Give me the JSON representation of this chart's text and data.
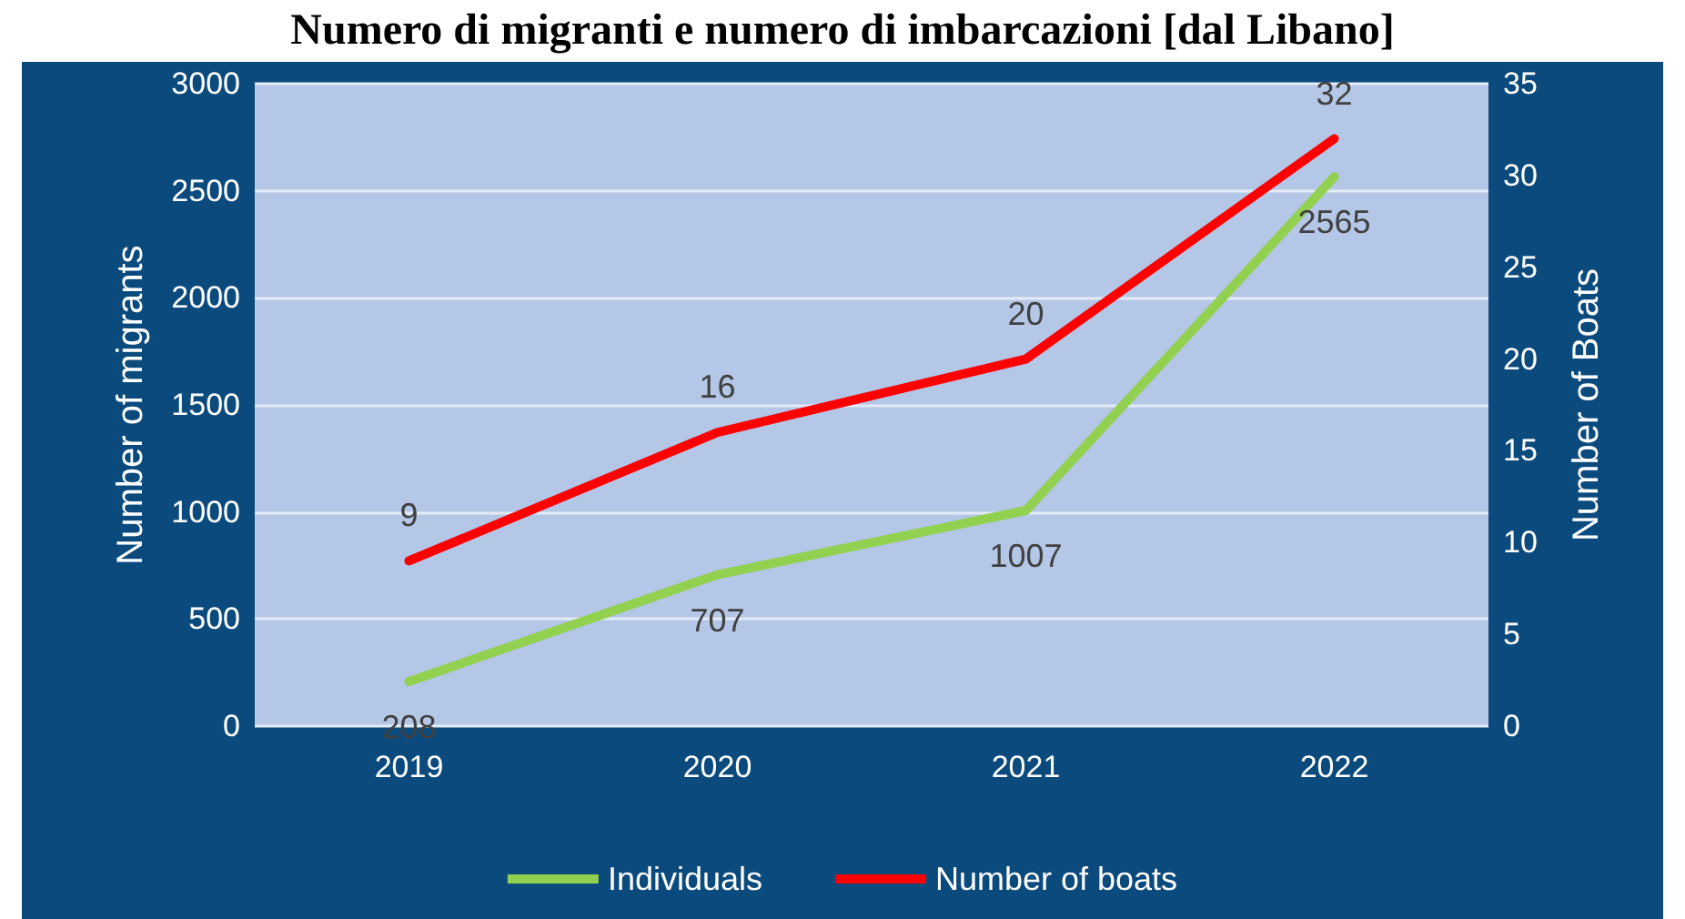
{
  "chart_data": {
    "type": "line",
    "title": "Numero di migranti e numero di imbarcazioni [dal Libano]",
    "categories": [
      "2019",
      "2020",
      "2021",
      "2022"
    ],
    "ylabel": "Number of migrants",
    "y2label": "Number of Boats",
    "series": [
      {
        "name": "Individuals",
        "color": "#92d050",
        "values": [
          208,
          707,
          1007,
          2565
        ]
      },
      {
        "name": "Number of boats",
        "color": "#ff0000",
        "values": [
          9,
          16,
          20,
          32
        ],
        "axis": "y2"
      }
    ],
    "ylim": [
      0,
      3000
    ],
    "yticks": [
      0,
      500,
      1000,
      1500,
      2000,
      2500,
      3000
    ],
    "y2lim": [
      0,
      35
    ],
    "y2ticks": [
      0,
      5,
      10,
      15,
      20,
      25,
      30,
      35
    ],
    "grid": "y",
    "legend": "bottom",
    "data_labels": true,
    "marker": "none",
    "line_style": "solid"
  }
}
